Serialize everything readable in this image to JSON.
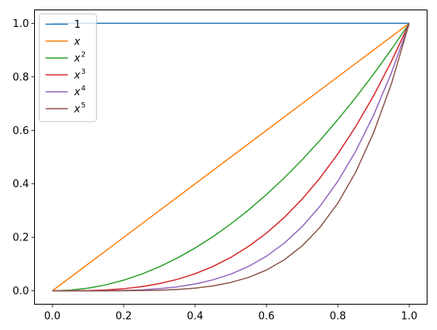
{
  "chart_data": {
    "type": "line",
    "title": "",
    "xlabel": "",
    "ylabel": "",
    "xlim": [
      -0.05,
      1.05
    ],
    "ylim": [
      -0.05,
      1.05
    ],
    "xticks": [
      0.0,
      0.2,
      0.4,
      0.6,
      0.8,
      1.0
    ],
    "xtick_labels": [
      "0.0",
      "0.2",
      "0.4",
      "0.6",
      "0.8",
      "1.0"
    ],
    "yticks": [
      0.0,
      0.2,
      0.4,
      0.6,
      0.8,
      1.0
    ],
    "ytick_labels": [
      "0.0",
      "0.2",
      "0.4",
      "0.6",
      "0.8",
      "1.0"
    ],
    "grid": false,
    "legend_position": "upper-left",
    "x": [
      0.0,
      0.05,
      0.1,
      0.15,
      0.2,
      0.25,
      0.3,
      0.35,
      0.4,
      0.45,
      0.5,
      0.55,
      0.6,
      0.65,
      0.7,
      0.75,
      0.8,
      0.85,
      0.9,
      0.95,
      1.0
    ],
    "series": [
      {
        "name": "1",
        "base": "",
        "exp": "",
        "color": "#1f77b4",
        "values": [
          1,
          1,
          1,
          1,
          1,
          1,
          1,
          1,
          1,
          1,
          1,
          1,
          1,
          1,
          1,
          1,
          1,
          1,
          1,
          1,
          1
        ]
      },
      {
        "name": "x",
        "base": "x",
        "exp": "",
        "color": "#ff7f0e",
        "values": [
          0.0,
          0.05,
          0.1,
          0.15,
          0.2,
          0.25,
          0.3,
          0.35,
          0.4,
          0.45,
          0.5,
          0.55,
          0.6,
          0.65,
          0.7,
          0.75,
          0.8,
          0.85,
          0.9,
          0.95,
          1.0
        ]
      },
      {
        "name": "x2",
        "base": "x",
        "exp": "2",
        "color": "#2ca02c",
        "values": [
          0.0,
          0.0025,
          0.01,
          0.0225,
          0.04,
          0.0625,
          0.09,
          0.1225,
          0.16,
          0.2025,
          0.25,
          0.3025,
          0.36,
          0.4225,
          0.49,
          0.5625,
          0.64,
          0.7225,
          0.81,
          0.9025,
          1.0
        ]
      },
      {
        "name": "x3",
        "base": "x",
        "exp": "3",
        "color": "#d62728",
        "values": [
          0.0,
          0.0001,
          0.001,
          0.0034,
          0.008,
          0.0156,
          0.027,
          0.0429,
          0.064,
          0.0911,
          0.125,
          0.1664,
          0.216,
          0.2746,
          0.343,
          0.4219,
          0.512,
          0.6141,
          0.729,
          0.8574,
          1.0
        ]
      },
      {
        "name": "x4",
        "base": "x",
        "exp": "4",
        "color": "#9467bd",
        "values": [
          0.0,
          0.0,
          0.0001,
          0.0005,
          0.0016,
          0.0039,
          0.0081,
          0.015,
          0.0256,
          0.041,
          0.0625,
          0.0915,
          0.1296,
          0.1785,
          0.2401,
          0.3164,
          0.4096,
          0.522,
          0.6561,
          0.8145,
          1.0
        ]
      },
      {
        "name": "x5",
        "base": "x",
        "exp": "5",
        "color": "#8c564b",
        "values": [
          0.0,
          0.0,
          0.0,
          0.0001,
          0.0003,
          0.001,
          0.0024,
          0.0053,
          0.0102,
          0.0185,
          0.0313,
          0.0503,
          0.0778,
          0.116,
          0.1681,
          0.2373,
          0.3277,
          0.4437,
          0.5905,
          0.7738,
          1.0
        ]
      }
    ]
  }
}
